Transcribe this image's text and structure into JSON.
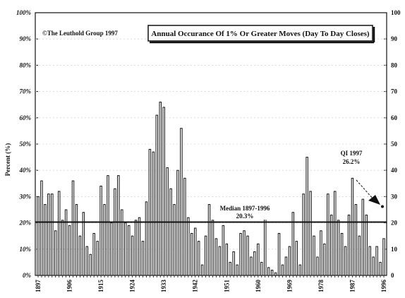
{
  "chart_data": {
    "type": "bar",
    "title": "Annual Occurance Of 1% Or Greater Moves (Day To Day Closes)",
    "copyright": "©The Leuthold Group 1997",
    "ylabel": "Percent (%)",
    "xlabel": "",
    "ylim": [
      0,
      100
    ],
    "yticks_left": [
      "0%",
      "10%",
      "20%",
      "30%",
      "40%",
      "50%",
      "60%",
      "70%",
      "80%",
      "90%",
      "100%"
    ],
    "yticks_right": [
      "0",
      "10",
      "20",
      "30",
      "40",
      "50",
      "60",
      "70",
      "80",
      "90",
      "100"
    ],
    "xticks": [
      "1897",
      "1906",
      "1915",
      "1924",
      "1933",
      "1942",
      "1951",
      "1960",
      "1969",
      "1978",
      "1987",
      "1996"
    ],
    "x": [
      1897,
      1898,
      1899,
      1900,
      1901,
      1902,
      1903,
      1904,
      1905,
      1906,
      1907,
      1908,
      1909,
      1910,
      1911,
      1912,
      1913,
      1914,
      1915,
      1916,
      1917,
      1918,
      1919,
      1920,
      1921,
      1922,
      1923,
      1924,
      1925,
      1926,
      1927,
      1928,
      1929,
      1930,
      1931,
      1932,
      1933,
      1934,
      1935,
      1936,
      1937,
      1938,
      1939,
      1940,
      1941,
      1942,
      1943,
      1944,
      1945,
      1946,
      1947,
      1948,
      1949,
      1950,
      1951,
      1952,
      1953,
      1954,
      1955,
      1956,
      1957,
      1958,
      1959,
      1960,
      1961,
      1962,
      1963,
      1964,
      1965,
      1966,
      1967,
      1968,
      1969,
      1970,
      1971,
      1972,
      1973,
      1974,
      1975,
      1976,
      1977,
      1978,
      1979,
      1980,
      1981,
      1982,
      1983,
      1984,
      1985,
      1986,
      1987,
      1988,
      1989,
      1990,
      1991,
      1992,
      1993,
      1994,
      1995,
      1996
    ],
    "values": [
      30,
      36,
      27,
      31,
      31,
      17,
      32,
      21,
      25,
      19,
      36,
      27,
      15,
      24,
      11,
      8,
      16,
      13,
      34,
      27,
      38,
      20,
      33,
      38,
      25,
      20,
      19,
      15,
      21,
      22,
      13,
      28,
      48,
      47,
      61,
      66,
      64,
      41,
      33,
      27,
      40,
      56,
      37,
      22,
      16,
      18,
      13,
      4,
      15,
      27,
      21,
      14,
      11,
      19,
      12,
      5,
      9,
      4,
      16,
      17,
      15,
      7,
      9,
      12,
      5,
      23,
      3,
      2,
      1,
      16,
      4,
      7,
      11,
      24,
      13,
      4,
      31,
      45,
      32,
      15,
      7,
      17,
      12,
      31,
      23,
      32,
      21,
      16,
      11,
      23,
      37,
      27,
      15,
      29,
      23,
      11,
      7,
      11,
      5,
      14
    ],
    "median_line": 20.3,
    "annotations": {
      "median_label": "Median 1897-1996",
      "median_value": "20.3%",
      "q1_label": "QI 1997",
      "q1_value": "26.2%",
      "q1_point": 26.2
    }
  }
}
